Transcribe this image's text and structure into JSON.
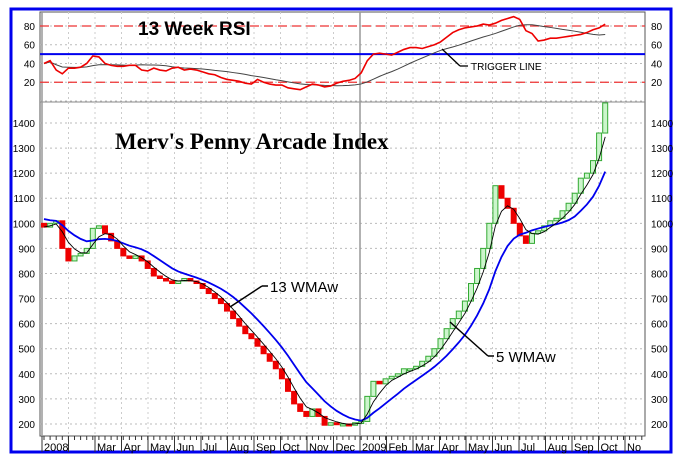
{
  "chart_data": {
    "type": "candlestick",
    "title": "Merv's Penny Arcade Index",
    "rsi_title": "13 Week RSI",
    "annotations": {
      "trigger": "TRIGGER LINE",
      "wma13": "13 WMAw",
      "wma5": "5 WMAw"
    },
    "price_axis": {
      "ylim": [
        200,
        1400
      ],
      "ticks": [
        200,
        300,
        400,
        500,
        600,
        700,
        800,
        900,
        1000,
        1100,
        1200,
        1300,
        1400
      ]
    },
    "rsi_axis": {
      "ylim": [
        0,
        100
      ],
      "ticks": [
        20,
        40,
        60,
        80
      ],
      "overbought": 80,
      "oversold": 20,
      "trigger_level": 50
    },
    "x_labels": [
      "2008",
      "",
      "Mar",
      "Apr",
      "May",
      "Jun",
      "Jul",
      "Aug",
      "Sep",
      "Oct",
      "Nov",
      "Dec",
      "2009",
      "Feb",
      "Mar",
      "Apr",
      "May",
      "Jun",
      "Jul",
      "Aug",
      "Sep",
      "Oct",
      "No"
    ],
    "closes": [
      985,
      1000,
      1010,
      900,
      850,
      870,
      880,
      900,
      980,
      990,
      960,
      930,
      900,
      870,
      860,
      870,
      850,
      820,
      790,
      780,
      770,
      760,
      770,
      780,
      770,
      760,
      740,
      720,
      700,
      680,
      650,
      620,
      590,
      560,
      540,
      510,
      480,
      450,
      420,
      380,
      330,
      280,
      250,
      230,
      260,
      230,
      195,
      205,
      200,
      200,
      195,
      205,
      210,
      310,
      370,
      360,
      380,
      390,
      400,
      420,
      420,
      430,
      450,
      470,
      500,
      540,
      580,
      620,
      650,
      690,
      760,
      820,
      900,
      1000,
      1150,
      1100,
      1060,
      1000,
      950,
      920,
      960,
      970,
      990,
      1010,
      1020,
      1050,
      1080,
      1120,
      1180,
      1200,
      1250,
      1360,
      1480
    ],
    "rsi": [
      40,
      43,
      33,
      29,
      35,
      35,
      36,
      40,
      48,
      47,
      40,
      38,
      37,
      37,
      38,
      38,
      33,
      32,
      35,
      33,
      32,
      35,
      36,
      33,
      34,
      33,
      31,
      29,
      28,
      25,
      23,
      22,
      21,
      19,
      18,
      23,
      20,
      18,
      17,
      17,
      14,
      13,
      12,
      15,
      18,
      17,
      15,
      16,
      19,
      21,
      22,
      24,
      30,
      43,
      50,
      51,
      50,
      49,
      52,
      55,
      57,
      57,
      56,
      58,
      60,
      63,
      68,
      73,
      76,
      78,
      79,
      80,
      82,
      81,
      83,
      86,
      88,
      90,
      87,
      75,
      72,
      64,
      65,
      67,
      67,
      68,
      69,
      70,
      71,
      73,
      76,
      78,
      82
    ],
    "series": [
      {
        "name": "5 WMAw",
        "color": "#000000"
      },
      {
        "name": "13 WMAw",
        "color": "#0000ee"
      },
      {
        "name": "RSI",
        "color": "#ee0000"
      },
      {
        "name": "Trigger",
        "color": "#444444"
      }
    ]
  },
  "colors": {
    "frame": "#0000ee",
    "up": "#33aa33",
    "up_fill": "#ccf5cc",
    "down": "#ee0000"
  }
}
